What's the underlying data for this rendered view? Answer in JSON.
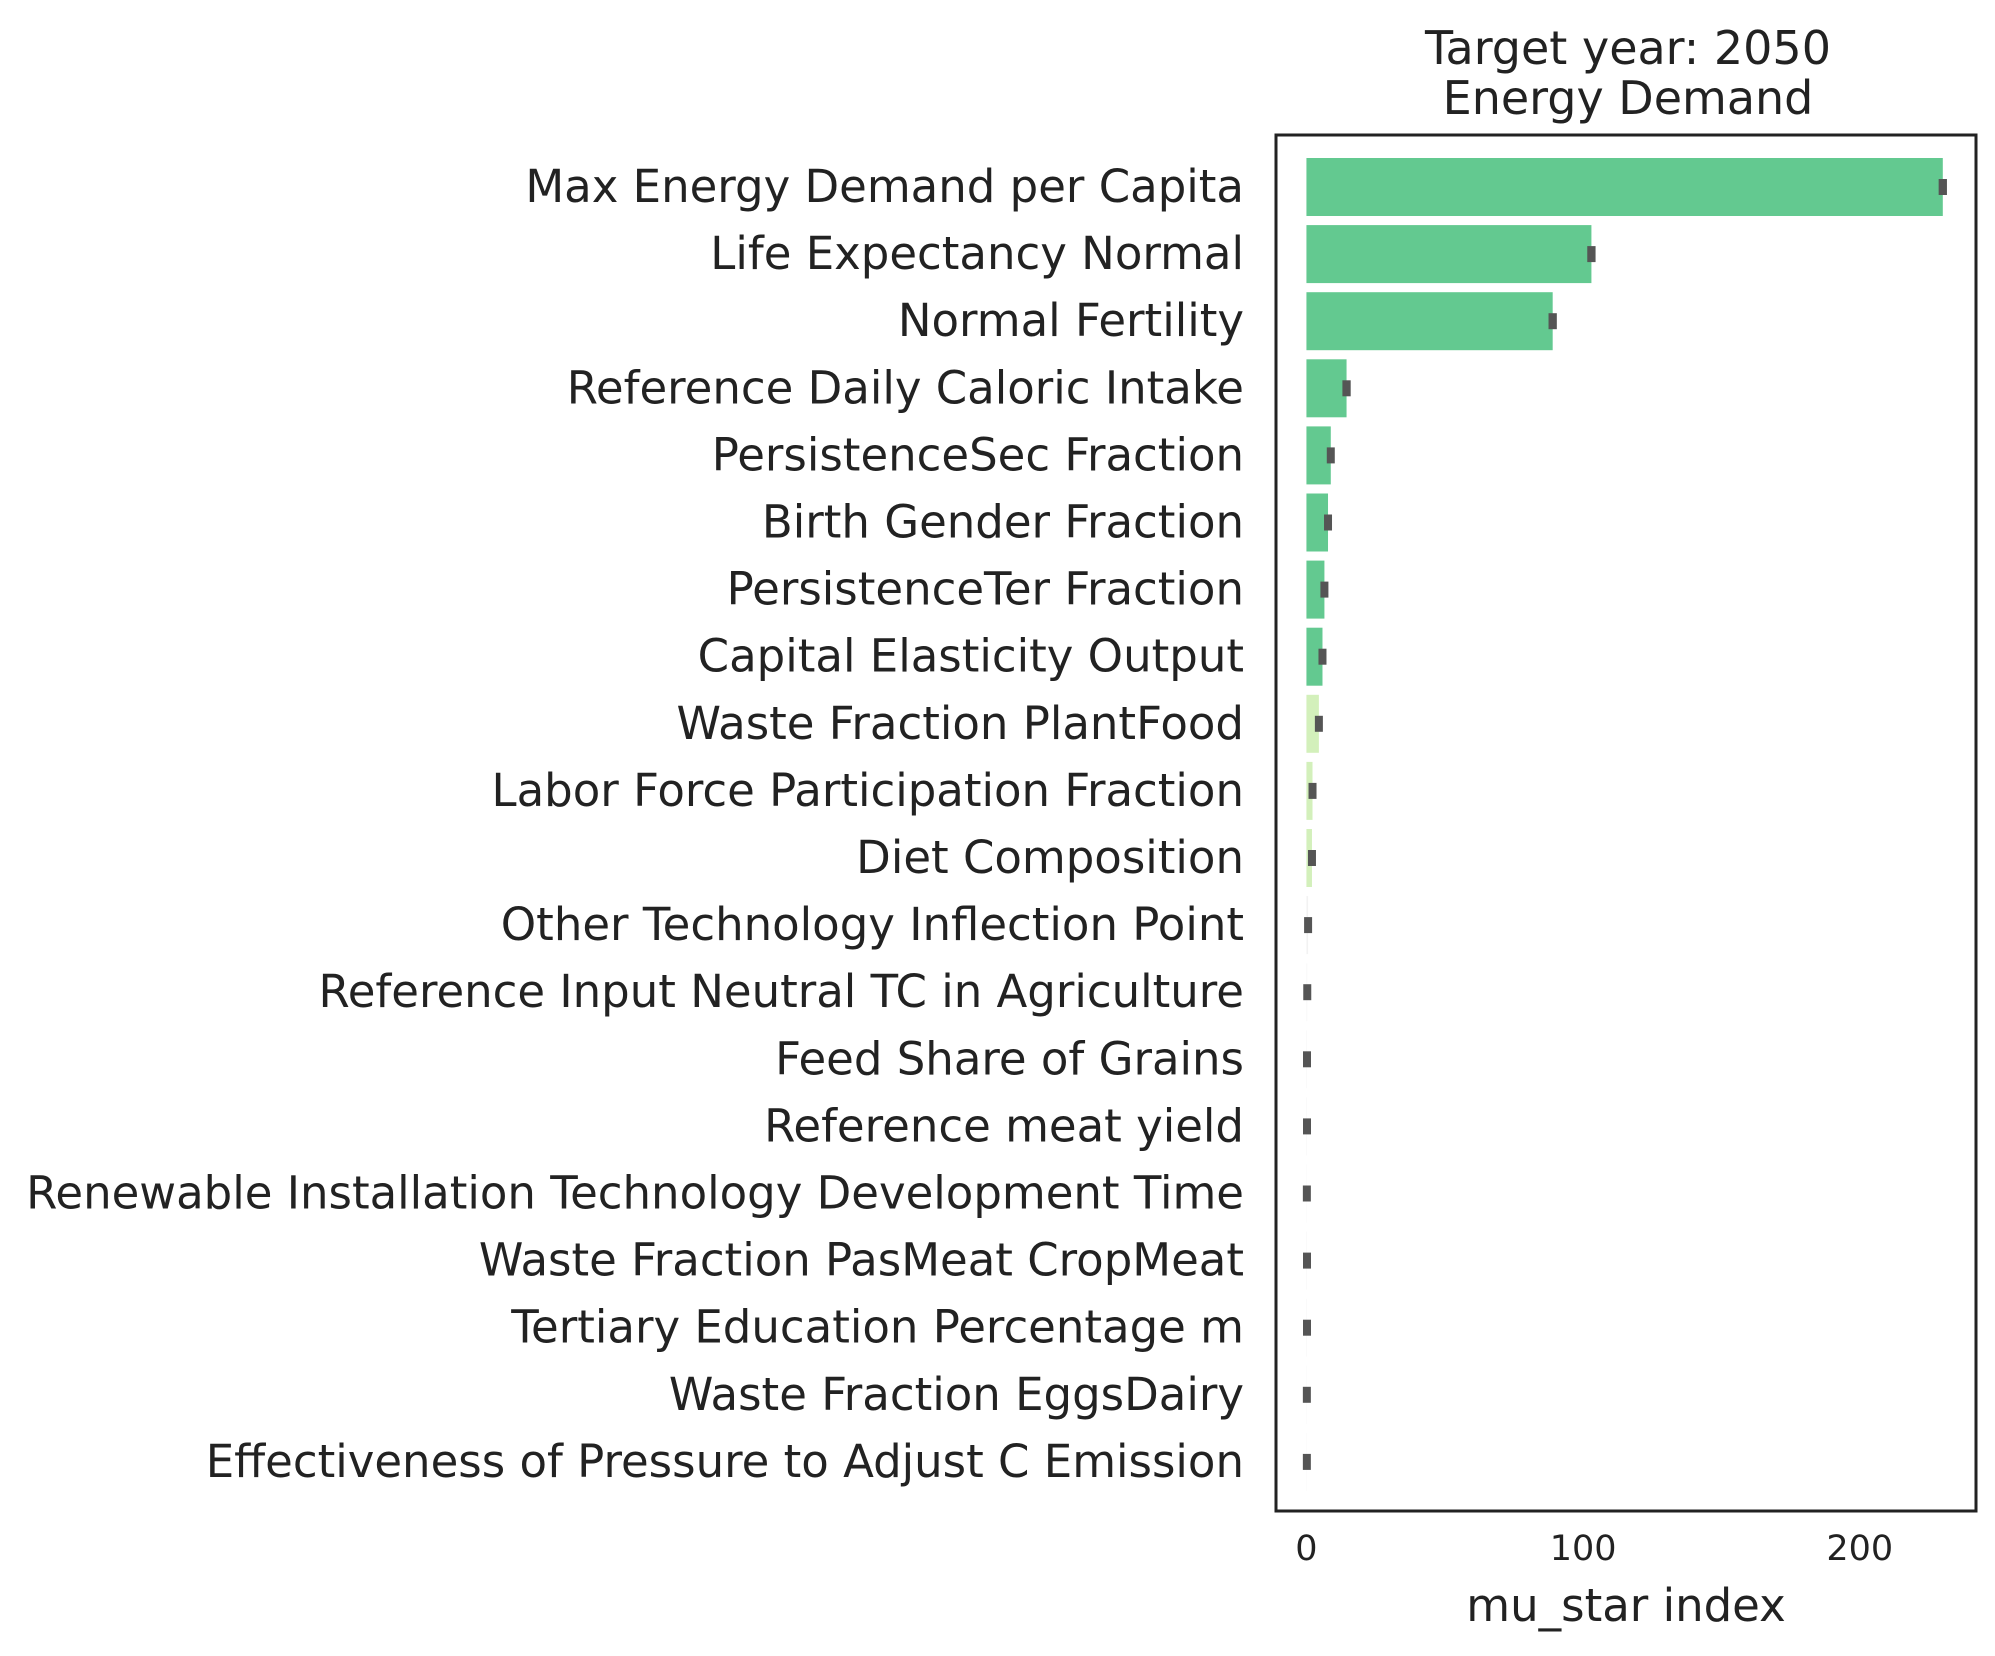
{
  "chart_data": {
    "type": "bar",
    "orientation": "horizontal",
    "title": "Target year: 2050",
    "subtitle": "Energy Demand",
    "xlabel": "mu_star index",
    "ylabel": "",
    "xlim": [
      -11,
      242
    ],
    "xticks": [
      0,
      100,
      200
    ],
    "grid": false,
    "categories": [
      "Max Energy Demand per Capita",
      "Life Expectancy Normal",
      "Normal Fertility",
      "Reference Daily Caloric Intake",
      "PersistenceSec Fraction",
      "Birth Gender Fraction",
      "PersistenceTer Fraction",
      "Capital Elasticity Output",
      "Waste Fraction PlantFood",
      "Labor Force Participation Fraction",
      "Diet Composition",
      "Other Technology Inflection Point",
      "Reference Input Neutral TC in Agriculture",
      "Feed Share of Grains",
      "Reference meat yield",
      "Renewable Installation Technology Development Time",
      "Waste Fraction PasMeat CropMeat",
      "Tertiary Education Percentage m",
      "Waste Fraction EggsDairy",
      "Effectiveness of Pressure to Adjust C Emission"
    ],
    "values": [
      230,
      103,
      89,
      14.5,
      8.8,
      7.8,
      6.5,
      5.8,
      4.5,
      2.2,
      2.0,
      0.6,
      0.3,
      0.2,
      0.2,
      0.15,
      0.2,
      0.2,
      0.15,
      0.15
    ],
    "errors": [
      1.5,
      1.5,
      1.5,
      1.5,
      1.0,
      1.0,
      0.8,
      0.8,
      0.6,
      0.5,
      0.5,
      0.5,
      0.5,
      0.5,
      0.5,
      0.5,
      0.5,
      0.5,
      0.5,
      0.5
    ],
    "bar_colors": [
      "#63c990",
      "#63c990",
      "#63c990",
      "#63c990",
      "#63c990",
      "#63c990",
      "#63c990",
      "#63c990",
      "#d3f0bb",
      "#d3f0bb",
      "#d3f0bb",
      "#f2f2f2",
      "#f7f7f7",
      "#f7f7f7",
      "#f7f7f7",
      "#f7f7f7",
      "#f7f7f7",
      "#f7f7f7",
      "#f7f7f7",
      "#f7f7f7"
    ],
    "error_color": "#555555"
  }
}
